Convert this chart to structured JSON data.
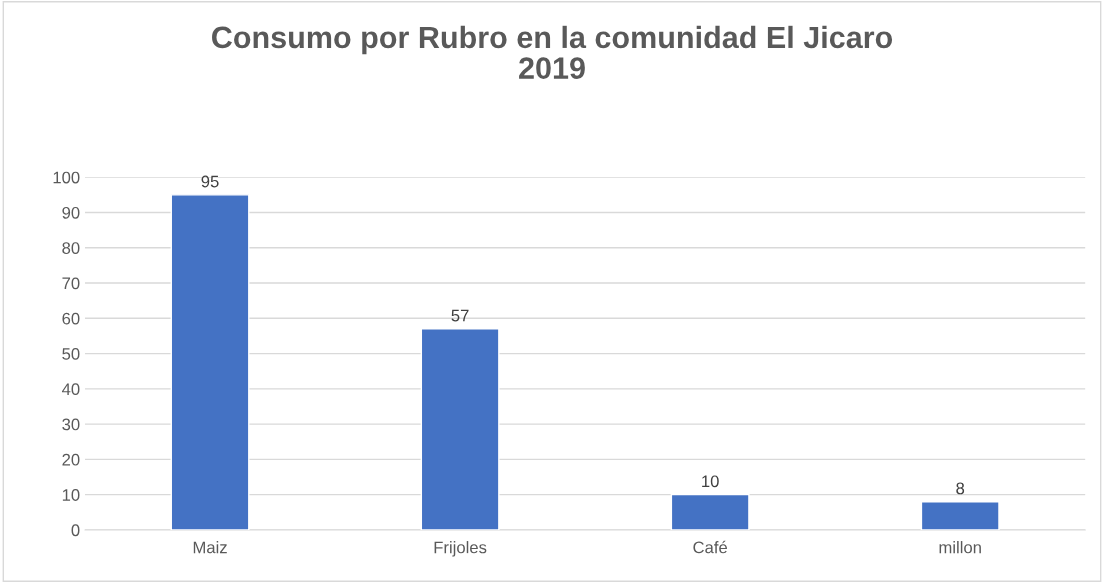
{
  "chart_data": {
    "type": "bar",
    "title": "Consumo por Rubro en la comunidad El Jicaro\n2019",
    "categories": [
      "Maiz",
      "Frijoles",
      "Café",
      "millon"
    ],
    "values": [
      95,
      57,
      10,
      8
    ],
    "color": "#4472c4",
    "ylim": [
      0,
      100
    ],
    "yticks": [
      0,
      10,
      20,
      30,
      40,
      50,
      60,
      70,
      80,
      90,
      100
    ],
    "grid": "y",
    "data_labels": true,
    "legend": false
  }
}
